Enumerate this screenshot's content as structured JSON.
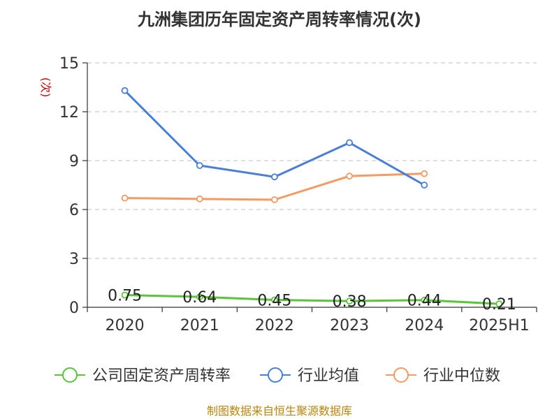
{
  "chart_data": {
    "type": "line",
    "title": "九洲集团历年固定资产周转率情况(次)",
    "unit": "(次)",
    "categories": [
      "2020",
      "2021",
      "2022",
      "2023",
      "2024",
      "2025H1"
    ],
    "ylim": [
      0,
      15
    ],
    "yticks": [
      0,
      3,
      6,
      9,
      12,
      15
    ],
    "grid": true,
    "legend_position": "bottom",
    "series": [
      {
        "name": "公司固定资产周转率",
        "color": "#5ac43a",
        "values": [
          0.75,
          0.64,
          0.45,
          0.38,
          0.44,
          0.21
        ],
        "labels": [
          "0.75",
          "0.64",
          "0.45",
          "0.38",
          "0.44",
          "0.21"
        ]
      },
      {
        "name": "行业均值",
        "color": "#4a7fd6",
        "values": [
          13.3,
          8.7,
          8.0,
          10.1,
          7.5,
          null
        ]
      },
      {
        "name": "行业中位数",
        "color": "#f59a62",
        "values": [
          6.7,
          6.65,
          6.6,
          8.05,
          8.2,
          null
        ]
      }
    ],
    "source": "制图数据来自恒生聚源数据库"
  }
}
